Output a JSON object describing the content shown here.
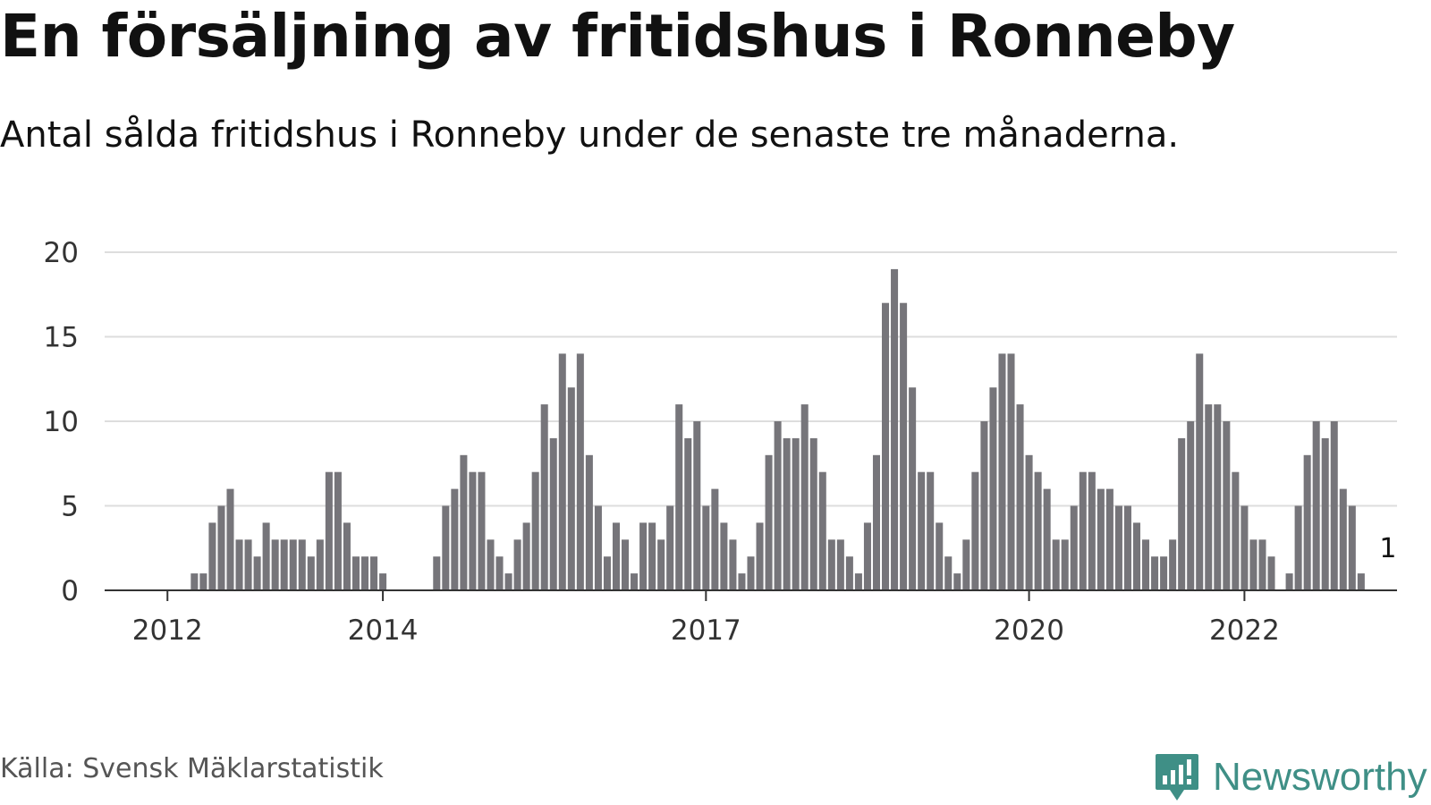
{
  "title": "En försäljning av fritidshus i Ronneby",
  "subtitle": "Antal sålda fritidshus i Ronneby under de senaste tre månaderna.",
  "source": "Källa: Svensk Mäklarstatistik",
  "logo": {
    "text": "Newsworthy",
    "icon": "newsworthy-logo-icon",
    "color": "#3f8f86"
  },
  "colors": {
    "bar": "#76757a",
    "highlight": "#1a9e96",
    "grid": "#dddddd",
    "axis": "#333333"
  },
  "chart_data": {
    "type": "bar",
    "title": "En försäljning av fritidshus i Ronneby",
    "subtitle": "Antal sålda fritidshus i Ronneby under de senaste tre månaderna.",
    "xlabel": "",
    "ylabel": "",
    "x_start": "2011-06",
    "x_end": "2023-06",
    "x_first_bar": "2011-07",
    "x_interval": "month",
    "x_ticks": [
      "2012",
      "2014",
      "2017",
      "2020",
      "2022"
    ],
    "ylim": [
      0,
      20
    ],
    "y_ticks": [
      0,
      5,
      10,
      15,
      20
    ],
    "grid": true,
    "values": [
      0,
      0,
      0,
      0,
      0,
      0,
      0,
      0,
      0,
      1,
      1,
      4,
      5,
      6,
      3,
      3,
      2,
      4,
      3,
      3,
      3,
      3,
      2,
      3,
      7,
      7,
      4,
      2,
      2,
      2,
      1,
      0,
      0,
      0,
      0,
      0,
      2,
      5,
      6,
      8,
      7,
      7,
      3,
      2,
      1,
      3,
      4,
      7,
      11,
      9,
      14,
      12,
      14,
      8,
      5,
      2,
      4,
      3,
      1,
      4,
      4,
      3,
      5,
      11,
      9,
      10,
      5,
      6,
      4,
      3,
      1,
      2,
      4,
      8,
      10,
      9,
      9,
      11,
      9,
      7,
      3,
      3,
      2,
      1,
      4,
      8,
      17,
      19,
      17,
      12,
      7,
      7,
      4,
      2,
      1,
      3,
      7,
      10,
      12,
      14,
      14,
      11,
      8,
      7,
      6,
      3,
      3,
      5,
      7,
      7,
      6,
      6,
      5,
      5,
      4,
      3,
      2,
      2,
      3,
      9,
      10,
      14,
      11,
      11,
      10,
      7,
      5,
      3,
      3,
      2,
      0,
      1,
      5,
      8,
      10,
      9,
      10,
      6,
      5,
      1
    ],
    "highlight": {
      "date": "2023-05",
      "value": 1,
      "label": "1"
    }
  }
}
